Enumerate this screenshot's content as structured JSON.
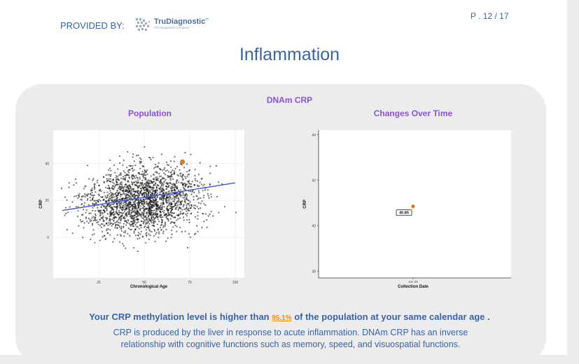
{
  "header": {
    "provided_by": "PROVIDED BY:",
    "logo_text": "TruDiagnostic",
    "logo_tm": "™",
    "logo_sub": "The Epigenetic Company",
    "page_number": "P . 12 / 17"
  },
  "title": "Inflammation",
  "card": {
    "title": "DNAm CRP",
    "population_title": "Population",
    "changes_title": "Changes Over Time"
  },
  "chart_data": [
    {
      "type": "scatter",
      "title": "Population",
      "xlabel": "Chronological Age",
      "ylabel": "CRP",
      "xlim": [
        0,
        105
      ],
      "ylim": [
        -22,
        58
      ],
      "xticks": [
        25,
        50,
        75,
        100
      ],
      "yticks": [
        0,
        20,
        40
      ],
      "grid": true,
      "cloud": {
        "x_mean": 50,
        "x_sd": 16,
        "y_mean": 20,
        "y_sd": 9
      },
      "trend_line": {
        "x": [
          5,
          100
        ],
        "y": [
          14.5,
          29.5
        ],
        "color": "#3b55e6"
      },
      "highlight": {
        "x": 71,
        "y": 40.85,
        "color": "#e07a1f"
      }
    },
    {
      "type": "scatter",
      "title": "Changes Over Time",
      "xlabel": "Collection Date",
      "ylabel": "CRP",
      "ylim": [
        37.7,
        44.2
      ],
      "yticks": [
        38,
        40,
        42,
        44
      ],
      "xticks": [
        "Jun 25"
      ],
      "grid": false,
      "points": [
        {
          "x": "Jun 25",
          "y": 40.85,
          "label": "40.85",
          "color": "#e07a1f"
        }
      ]
    }
  ],
  "summary": {
    "prefix": "Your CRP methylation level is higher than ",
    "percentile": "95.1%",
    "suffix": " of the population at your same calendar age ."
  },
  "description": "CRP is produced by the liver in response to acute inflammation. DNAm CRP has an inverse relationship with cognitive functions such as memory, speed, and visuospatial functions."
}
